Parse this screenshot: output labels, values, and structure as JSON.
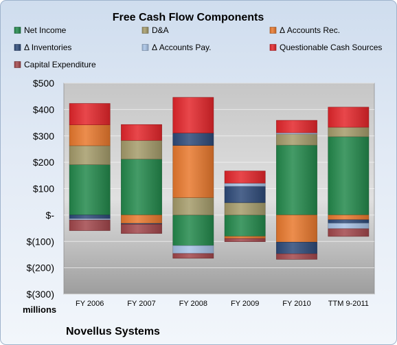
{
  "chart_data": {
    "type": "bar",
    "stacked": true,
    "title": "Free Cash Flow Components",
    "categories": [
      "FY 2006",
      "FY 2007",
      "FY 2008",
      "FY 2009",
      "FY 2010",
      "TTM 9-2011"
    ],
    "series": [
      {
        "name": "Net Income",
        "color": "#23894c",
        "values": [
          191,
          212,
          -116,
          -81,
          265,
          297
        ]
      },
      {
        "name": "D&A",
        "color": "#a59c6b",
        "values": [
          72,
          71,
          66,
          47,
          42,
          36
        ]
      },
      {
        "name": "Δ Accounts Rec.",
        "color": "#e9792d",
        "values": [
          79,
          -32,
          198,
          -8,
          -103,
          -18
        ]
      },
      {
        "name": "Δ Inventories",
        "color": "#2e4a79",
        "values": [
          -14,
          -3,
          47,
          62,
          -44,
          -13
        ]
      },
      {
        "name": "Δ Accounts Pay.",
        "color": "#a7c2e5",
        "values": [
          -5,
          0,
          -30,
          12,
          5,
          -21
        ]
      },
      {
        "name": "Questionable Cash Sources",
        "color": "#e4262b",
        "values": [
          81,
          60,
          135,
          46,
          47,
          76
        ]
      },
      {
        "name": "Capital Expenditure",
        "color": "#a2474c",
        "values": [
          -40,
          -35,
          -18,
          -12,
          -21,
          -29
        ]
      }
    ],
    "ylim": [
      -300,
      500
    ],
    "yticks": [
      500,
      400,
      300,
      200,
      100,
      0,
      -100,
      -200,
      -300
    ],
    "ytick_labels": [
      "$500",
      "$400",
      "$300",
      "$200",
      "$100",
      "$-",
      "$(100)",
      "$(200)",
      "$(300)"
    ],
    "unit_label": "millions",
    "grid": true,
    "legend": "top"
  },
  "footer": {
    "company": "Novellus Systems"
  }
}
